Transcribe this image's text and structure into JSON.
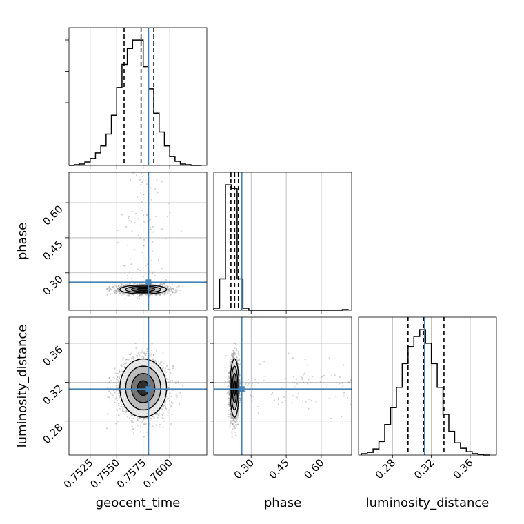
{
  "chart_data": {
    "type": "corner",
    "parameters": [
      "geocent_time",
      "phase",
      "luminosity_distance"
    ],
    "axis_labels": {
      "x": [
        "geocent_time",
        "phase",
        "luminosity_distance"
      ],
      "y": [
        "phase",
        "luminosity_distance"
      ]
    },
    "ranges": {
      "geocent_time": [
        0.7505,
        0.7635
      ],
      "phase": [
        0.14,
        0.73
      ],
      "luminosity_distance": [
        0.245,
        0.387
      ]
    },
    "ticks": {
      "geocent_time": {
        "values": [
          0.7525,
          0.755,
          0.7575,
          0.76
        ],
        "labels": [
          "0.7525",
          "0.7550",
          "0.7575",
          "0.7600"
        ]
      },
      "phase": {
        "values": [
          0.3,
          0.45,
          0.6
        ],
        "labels": [
          "0.30",
          "0.45",
          "0.60"
        ]
      },
      "luminosity_distance": {
        "values": [
          0.28,
          0.32,
          0.36
        ],
        "labels": [
          "0.28",
          "0.32",
          "0.36"
        ]
      }
    },
    "truths": {
      "geocent_time": 0.758,
      "phase": 0.26,
      "luminosity_distance": 0.313
    },
    "quantiles": {
      "geocent_time": [
        0.7557,
        0.7573,
        0.7585
      ],
      "phase": [
        0.2135,
        0.2295,
        0.2455
      ],
      "luminosity_distance": [
        0.296,
        0.312,
        0.333
      ]
    },
    "histograms": {
      "geocent_time": {
        "edges": [
          0.7505,
          0.751,
          0.7515,
          0.752,
          0.7525,
          0.753,
          0.7535,
          0.754,
          0.7545,
          0.755,
          0.7555,
          0.756,
          0.7565,
          0.757,
          0.7575,
          0.758,
          0.7585,
          0.759,
          0.7595,
          0.76,
          0.7605,
          0.761,
          0.7615,
          0.762,
          0.7625,
          0.763
        ],
        "counts": [
          0,
          1,
          2,
          5,
          10,
          18,
          28,
          45,
          72,
          112,
          145,
          168,
          180,
          180,
          142,
          110,
          75,
          48,
          28,
          13,
          6,
          2,
          1,
          0,
          0
        ]
      },
      "phase": {
        "edges": [
          0.14,
          0.165,
          0.19,
          0.215,
          0.24,
          0.265,
          0.29,
          0.315,
          0.34,
          0.365,
          0.39,
          0.415,
          0.44,
          0.465,
          0.49,
          0.515,
          0.54,
          0.565,
          0.59,
          0.615,
          0.64,
          0.665,
          0.69,
          0.715
        ],
        "counts": [
          3,
          45,
          180,
          175,
          45,
          3,
          0,
          0,
          0,
          0,
          0,
          0,
          0,
          0,
          0,
          0,
          0,
          0,
          0,
          0,
          0,
          0,
          1
        ]
      },
      "luminosity_distance": {
        "edges": [
          0.248,
          0.254,
          0.26,
          0.266,
          0.272,
          0.278,
          0.284,
          0.29,
          0.296,
          0.302,
          0.308,
          0.314,
          0.32,
          0.326,
          0.332,
          0.338,
          0.344,
          0.35,
          0.356,
          0.362,
          0.368,
          0.374,
          0.38
        ],
        "counts": [
          2,
          4,
          9,
          20,
          45,
          70,
          100,
          135,
          160,
          175,
          185,
          165,
          135,
          100,
          60,
          35,
          18,
          10,
          5,
          2,
          1,
          0
        ]
      }
    },
    "scatter_samples": 2500,
    "grid": true,
    "colors": {
      "truth": "#4682b4",
      "line": "#000000",
      "grid": "#b0b0b0",
      "points": "#808080"
    }
  }
}
